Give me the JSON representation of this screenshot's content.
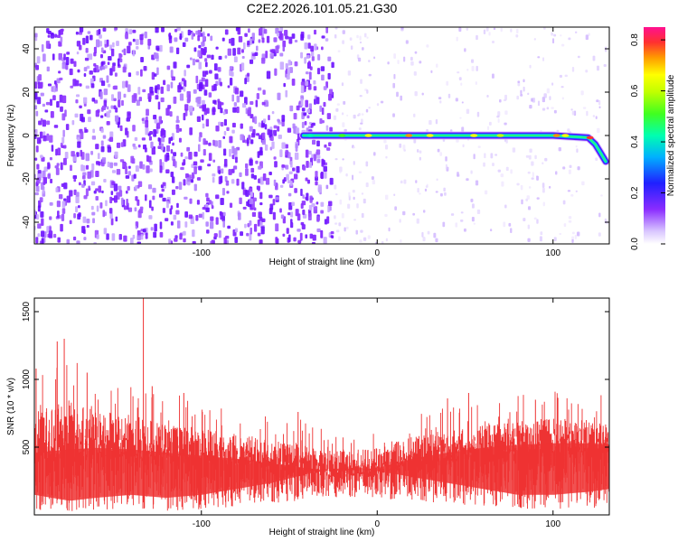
{
  "title": "C2E2.2026.101.05.21.G30",
  "chart_data": [
    {
      "type": "heatmap",
      "xlabel": "Height of straight line (km)",
      "ylabel": "Frequency (Hz)",
      "xlim": [
        -195,
        132
      ],
      "ylim": [
        -50,
        50
      ],
      "x_ticks": [
        -100,
        0,
        100
      ],
      "x_tick_labels": [
        "-100",
        "0",
        "100"
      ],
      "y_ticks": [
        -40,
        -20,
        0,
        20,
        40
      ],
      "y_tick_labels": [
        "-40",
        "-20",
        "0",
        "20",
        "40"
      ],
      "colorbar": {
        "label": "Normalized spectral amplitude",
        "range": [
          0.0,
          0.85
        ],
        "ticks": [
          0.0,
          0.2,
          0.4,
          0.6,
          0.8
        ],
        "tick_labels": [
          "0.0",
          "0.2",
          "0.4",
          "0.6",
          "0.8"
        ],
        "colormap": [
          "#ffffff",
          "#c8a8ff",
          "#7a1cff",
          "#2020ff",
          "#00c8ff",
          "#00ff80",
          "#a0ff00",
          "#ffff00",
          "#ff9000",
          "#ff3030",
          "#ff1090"
        ]
      },
      "ridge": {
        "description_x_start": -42,
        "points": [
          [
            -42,
            0
          ],
          [
            0,
            0
          ],
          [
            60,
            0
          ],
          [
            100,
            0
          ],
          [
            120,
            -1
          ],
          [
            124,
            -4
          ],
          [
            127,
            -8
          ],
          [
            130,
            -12
          ]
        ],
        "peak_value": 0.8
      },
      "noise_background": {
        "dense_x_range": [
          -195,
          -25
        ],
        "dense_value": 0.3,
        "sparse_value": 0.08
      },
      "grid": false
    },
    {
      "type": "line",
      "xlabel": "Height of straight line (km)",
      "ylabel": "SNR (10 * v/v)",
      "xlim": [
        -195,
        132
      ],
      "ylim": [
        0,
        1600
      ],
      "x_ticks": [
        -100,
        0,
        100
      ],
      "x_tick_labels": [
        "-100",
        "0",
        "100"
      ],
      "y_ticks": [
        500,
        1000,
        1500
      ],
      "y_tick_labels": [
        "500",
        "1000",
        "1500"
      ],
      "series": [
        {
          "color": "#ee3333",
          "envelope_x": [
            -195,
            -175,
            -160,
            -140,
            -120,
            -100,
            -80,
            -60,
            -40,
            -20,
            0,
            20,
            40,
            60,
            80,
            100,
            120,
            132
          ],
          "envelope_low": [
            40,
            20,
            30,
            40,
            30,
            40,
            60,
            80,
            110,
            130,
            120,
            100,
            80,
            60,
            40,
            40,
            50,
            60
          ],
          "envelope_mid": [
            400,
            420,
            430,
            420,
            400,
            380,
            360,
            330,
            300,
            280,
            300,
            360,
            400,
            430,
            450,
            460,
            460,
            450
          ],
          "envelope_high": [
            1050,
            1200,
            1100,
            1000,
            900,
            850,
            800,
            750,
            700,
            650,
            650,
            750,
            800,
            850,
            900,
            920,
            900,
            880
          ],
          "spikes": [
            [
              -194,
              1080
            ],
            [
              -182,
              1280
            ],
            [
              -178,
              1300
            ],
            [
              -165,
              1050
            ],
            [
              -133,
              1620
            ],
            [
              -128,
              950
            ],
            [
              -110,
              900
            ],
            [
              -45,
              760
            ],
            [
              40,
              860
            ],
            [
              52,
              900
            ],
            [
              90,
              850
            ]
          ]
        }
      ],
      "grid": false
    }
  ]
}
